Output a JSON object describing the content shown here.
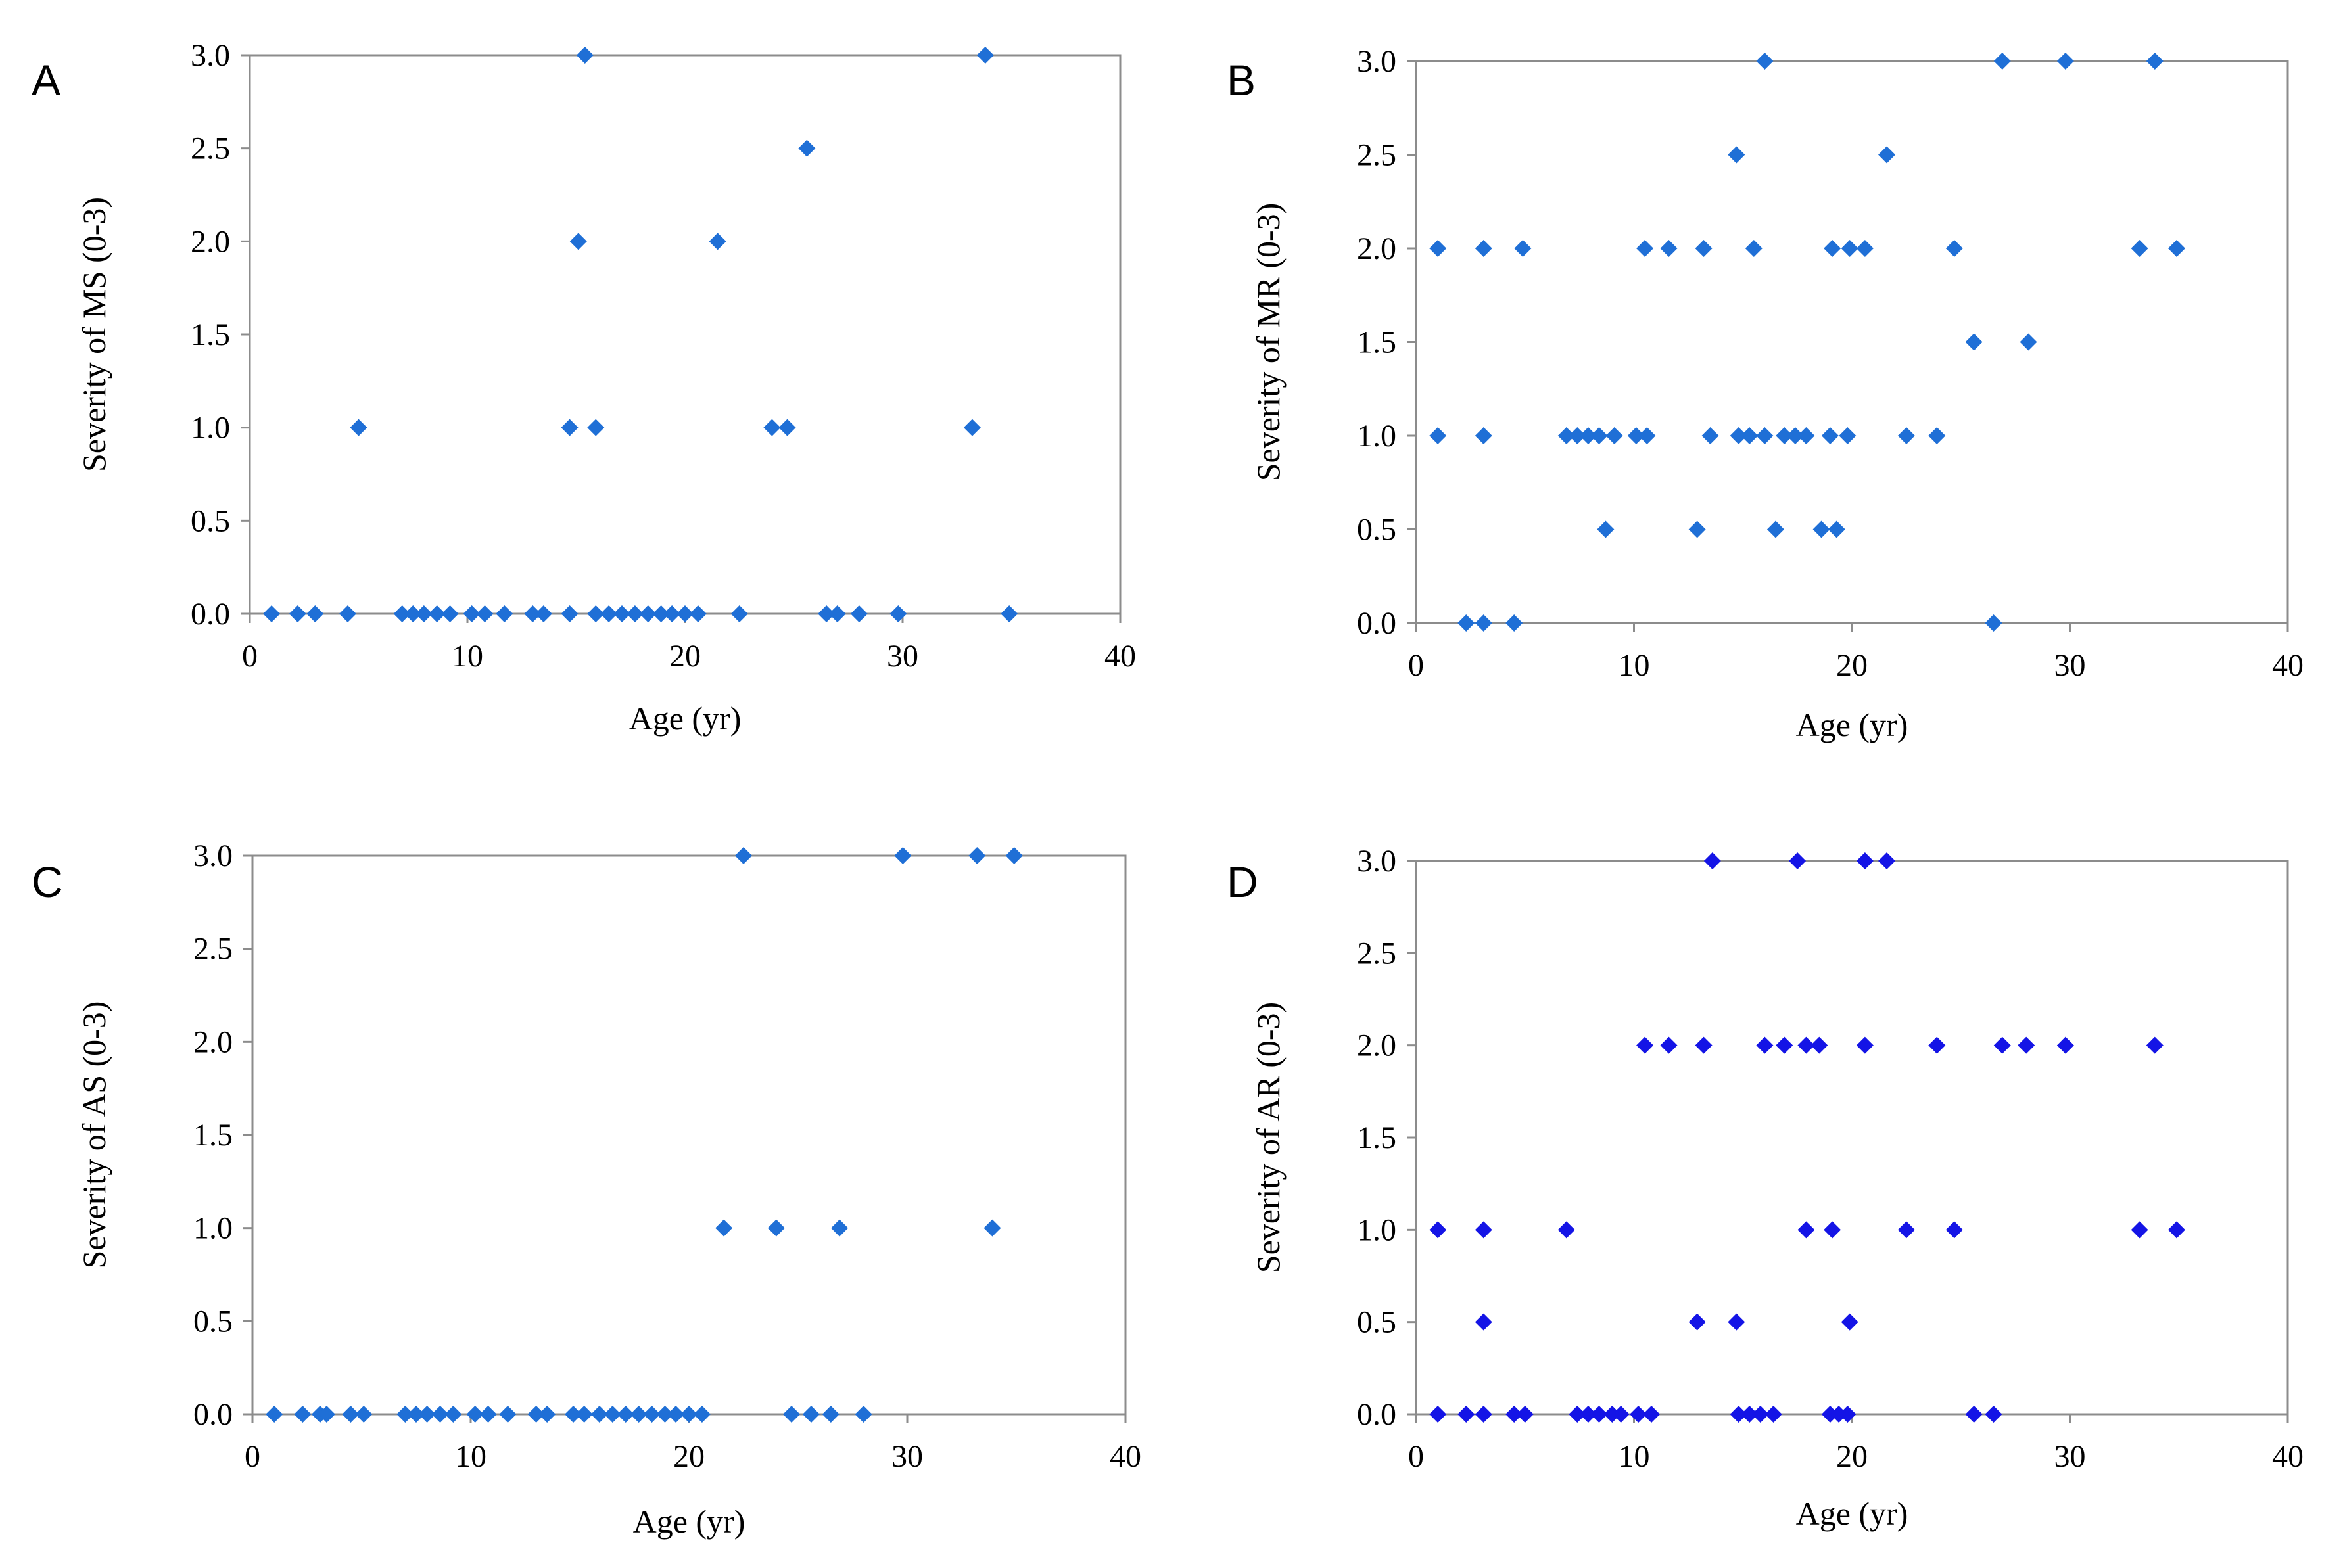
{
  "figure": {
    "marker_colors": {
      "light": "#1f6fd6",
      "dark": "#1414e6"
    }
  },
  "chart_data": [
    {
      "id": "A",
      "type": "scatter",
      "panel_label": "A",
      "xlabel": "Age (yr)",
      "ylabel": "Severity of MS (0-3)",
      "xlim": [
        0,
        40
      ],
      "ylim": [
        0,
        3
      ],
      "xticks": [
        "0",
        "10",
        "20",
        "30",
        "40"
      ],
      "yticks": [
        "0.0",
        "0.5",
        "1.0",
        "1.5",
        "2.0",
        "2.5",
        "3.0"
      ],
      "marker_color": "#1f6fd6",
      "points": [
        [
          1.0,
          0
        ],
        [
          2.2,
          0
        ],
        [
          3.0,
          0
        ],
        [
          4.5,
          0
        ],
        [
          7.0,
          0
        ],
        [
          7.5,
          0
        ],
        [
          8.0,
          0
        ],
        [
          8.6,
          0
        ],
        [
          9.2,
          0
        ],
        [
          10.2,
          0
        ],
        [
          10.8,
          0
        ],
        [
          11.7,
          0
        ],
        [
          13.0,
          0
        ],
        [
          13.5,
          0
        ],
        [
          14.7,
          0
        ],
        [
          15.9,
          0
        ],
        [
          16.5,
          0
        ],
        [
          17.1,
          0
        ],
        [
          17.7,
          0
        ],
        [
          18.3,
          0
        ],
        [
          18.9,
          0
        ],
        [
          19.4,
          0
        ],
        [
          20.0,
          0
        ],
        [
          20.6,
          0
        ],
        [
          22.5,
          0
        ],
        [
          26.5,
          0
        ],
        [
          27.0,
          0
        ],
        [
          28.0,
          0
        ],
        [
          29.8,
          0
        ],
        [
          34.9,
          0
        ],
        [
          5.0,
          1
        ],
        [
          14.7,
          1
        ],
        [
          15.9,
          1
        ],
        [
          24.0,
          1
        ],
        [
          24.7,
          1
        ],
        [
          33.2,
          1
        ],
        [
          15.1,
          2
        ],
        [
          21.5,
          2
        ],
        [
          25.6,
          2.5
        ],
        [
          15.4,
          3
        ],
        [
          33.8,
          3
        ]
      ]
    },
    {
      "id": "B",
      "type": "scatter",
      "panel_label": "B",
      "xlabel": "Age (yr)",
      "ylabel": "Severity of MR (0-3)",
      "xlim": [
        0,
        40
      ],
      "ylim": [
        0,
        3
      ],
      "xticks": [
        "0",
        "10",
        "20",
        "30",
        "40"
      ],
      "yticks": [
        "0.0",
        "0.5",
        "1.0",
        "1.5",
        "2.0",
        "2.5",
        "3.0"
      ],
      "marker_color": "#1f6fd6",
      "points": [
        [
          2.3,
          0
        ],
        [
          3.1,
          0
        ],
        [
          4.5,
          0
        ],
        [
          26.5,
          0
        ],
        [
          8.7,
          0.5
        ],
        [
          12.9,
          0.5
        ],
        [
          16.5,
          0.5
        ],
        [
          18.6,
          0.5
        ],
        [
          19.3,
          0.5
        ],
        [
          1.0,
          1
        ],
        [
          3.1,
          1
        ],
        [
          6.9,
          1
        ],
        [
          7.4,
          1
        ],
        [
          7.9,
          1
        ],
        [
          8.4,
          1
        ],
        [
          9.1,
          1
        ],
        [
          10.1,
          1
        ],
        [
          10.6,
          1
        ],
        [
          13.5,
          1
        ],
        [
          14.8,
          1
        ],
        [
          15.3,
          1
        ],
        [
          16.0,
          1
        ],
        [
          16.9,
          1
        ],
        [
          17.4,
          1
        ],
        [
          17.9,
          1
        ],
        [
          19.0,
          1
        ],
        [
          19.8,
          1
        ],
        [
          22.5,
          1
        ],
        [
          23.9,
          1
        ],
        [
          25.6,
          1.5
        ],
        [
          28.1,
          1.5
        ],
        [
          1.0,
          2
        ],
        [
          3.1,
          2
        ],
        [
          4.9,
          2
        ],
        [
          10.5,
          2
        ],
        [
          11.6,
          2
        ],
        [
          13.2,
          2
        ],
        [
          15.5,
          2
        ],
        [
          19.1,
          2
        ],
        [
          19.9,
          2
        ],
        [
          20.6,
          2
        ],
        [
          24.7,
          2
        ],
        [
          33.2,
          2
        ],
        [
          34.9,
          2
        ],
        [
          14.7,
          2.5
        ],
        [
          21.6,
          2.5
        ],
        [
          16.0,
          3
        ],
        [
          26.9,
          3
        ],
        [
          29.8,
          3
        ],
        [
          33.9,
          3
        ]
      ]
    },
    {
      "id": "C",
      "type": "scatter",
      "panel_label": "C",
      "xlabel": "Age (yr)",
      "ylabel": "Severity of AS (0-3)",
      "xlim": [
        0,
        40
      ],
      "ylim": [
        0,
        3
      ],
      "xticks": [
        "0",
        "10",
        "20",
        "30",
        "40"
      ],
      "yticks": [
        "0.0",
        "0.5",
        "1.0",
        "1.5",
        "2.0",
        "2.5",
        "3.0"
      ],
      "marker_color": "#1f6fd6",
      "points": [
        [
          1.0,
          0
        ],
        [
          2.3,
          0
        ],
        [
          3.1,
          0
        ],
        [
          3.4,
          0
        ],
        [
          4.5,
          0
        ],
        [
          5.1,
          0
        ],
        [
          7.0,
          0
        ],
        [
          7.5,
          0
        ],
        [
          8.0,
          0
        ],
        [
          8.6,
          0
        ],
        [
          9.2,
          0
        ],
        [
          10.2,
          0
        ],
        [
          10.8,
          0
        ],
        [
          11.7,
          0
        ],
        [
          13.0,
          0
        ],
        [
          13.5,
          0
        ],
        [
          14.7,
          0
        ],
        [
          15.2,
          0
        ],
        [
          15.9,
          0
        ],
        [
          16.5,
          0
        ],
        [
          17.1,
          0
        ],
        [
          17.7,
          0
        ],
        [
          18.3,
          0
        ],
        [
          18.9,
          0
        ],
        [
          19.4,
          0
        ],
        [
          20.0,
          0
        ],
        [
          20.6,
          0
        ],
        [
          24.7,
          0
        ],
        [
          25.6,
          0
        ],
        [
          26.5,
          0
        ],
        [
          28.0,
          0
        ],
        [
          21.6,
          1
        ],
        [
          24.0,
          1
        ],
        [
          26.9,
          1
        ],
        [
          33.9,
          1
        ],
        [
          22.5,
          3
        ],
        [
          29.8,
          3
        ],
        [
          33.2,
          3
        ],
        [
          34.9,
          3
        ]
      ]
    },
    {
      "id": "D",
      "type": "scatter",
      "panel_label": "D",
      "xlabel": "Age (yr)",
      "ylabel": "Severity of AR (0-3)",
      "xlim": [
        0,
        40
      ],
      "ylim": [
        0,
        3
      ],
      "xticks": [
        "0",
        "10",
        "20",
        "30",
        "40"
      ],
      "yticks": [
        "0.0",
        "0.5",
        "1.0",
        "1.5",
        "2.0",
        "2.5",
        "3.0"
      ],
      "marker_color": "#1414e6",
      "points": [
        [
          1.0,
          0
        ],
        [
          2.3,
          0
        ],
        [
          3.1,
          0
        ],
        [
          4.5,
          0
        ],
        [
          5.0,
          0
        ],
        [
          7.4,
          0
        ],
        [
          7.9,
          0
        ],
        [
          8.4,
          0
        ],
        [
          9.0,
          0
        ],
        [
          9.4,
          0
        ],
        [
          10.2,
          0
        ],
        [
          10.8,
          0
        ],
        [
          14.8,
          0
        ],
        [
          15.3,
          0
        ],
        [
          15.8,
          0
        ],
        [
          16.4,
          0
        ],
        [
          19.0,
          0
        ],
        [
          19.4,
          0
        ],
        [
          19.8,
          0
        ],
        [
          25.6,
          0
        ],
        [
          26.5,
          0
        ],
        [
          3.1,
          0.5
        ],
        [
          12.9,
          0.5
        ],
        [
          14.7,
          0.5
        ],
        [
          19.9,
          0.5
        ],
        [
          1.0,
          1
        ],
        [
          3.1,
          1
        ],
        [
          6.9,
          1
        ],
        [
          17.9,
          1
        ],
        [
          19.1,
          1
        ],
        [
          22.5,
          1
        ],
        [
          24.7,
          1
        ],
        [
          33.2,
          1
        ],
        [
          34.9,
          1
        ],
        [
          10.5,
          2
        ],
        [
          11.6,
          2
        ],
        [
          13.2,
          2
        ],
        [
          16.0,
          2
        ],
        [
          16.9,
          2
        ],
        [
          17.9,
          2
        ],
        [
          18.5,
          2
        ],
        [
          20.6,
          2
        ],
        [
          23.9,
          2
        ],
        [
          26.9,
          2
        ],
        [
          28.0,
          2
        ],
        [
          29.8,
          2
        ],
        [
          33.9,
          2
        ],
        [
          13.6,
          3
        ],
        [
          17.5,
          3
        ],
        [
          20.6,
          3
        ],
        [
          21.6,
          3
        ]
      ]
    }
  ]
}
